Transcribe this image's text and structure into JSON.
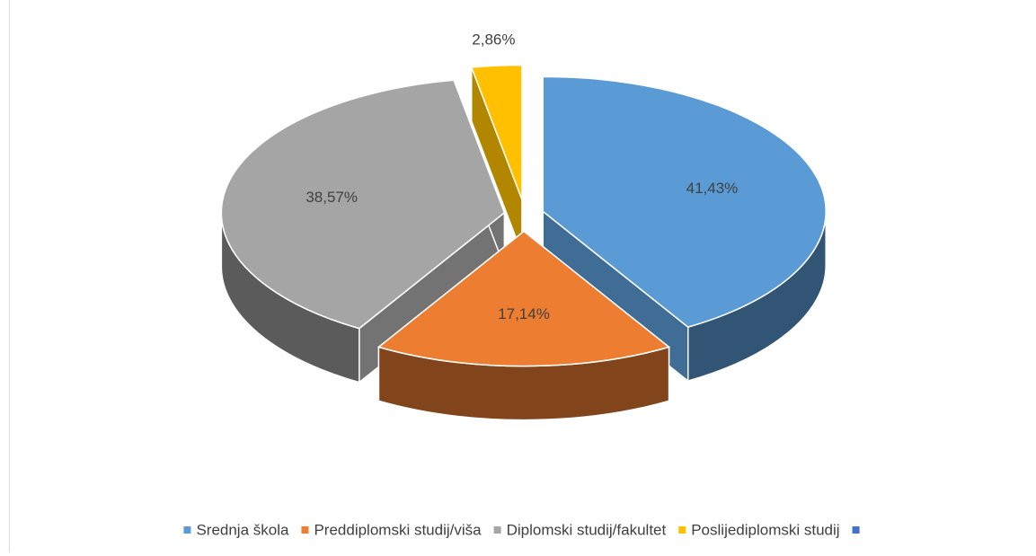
{
  "chart_data": {
    "type": "pie3d",
    "categories": [
      "Srednja škola",
      "Preddiplomski studij/viša",
      "Diplomski studij/fakultet",
      "Poslijediplomski studij",
      null
    ],
    "values": [
      41.43,
      17.14,
      38.57,
      2.86,
      null
    ],
    "value_labels": [
      "41,43%",
      "17,14%",
      "38,57%",
      "2,86%",
      null
    ],
    "colors": [
      "#5b9bd5",
      "#ed7d31",
      "#a5a5a5",
      "#ffc000",
      "#4472c4"
    ],
    "legend": "bottom"
  }
}
